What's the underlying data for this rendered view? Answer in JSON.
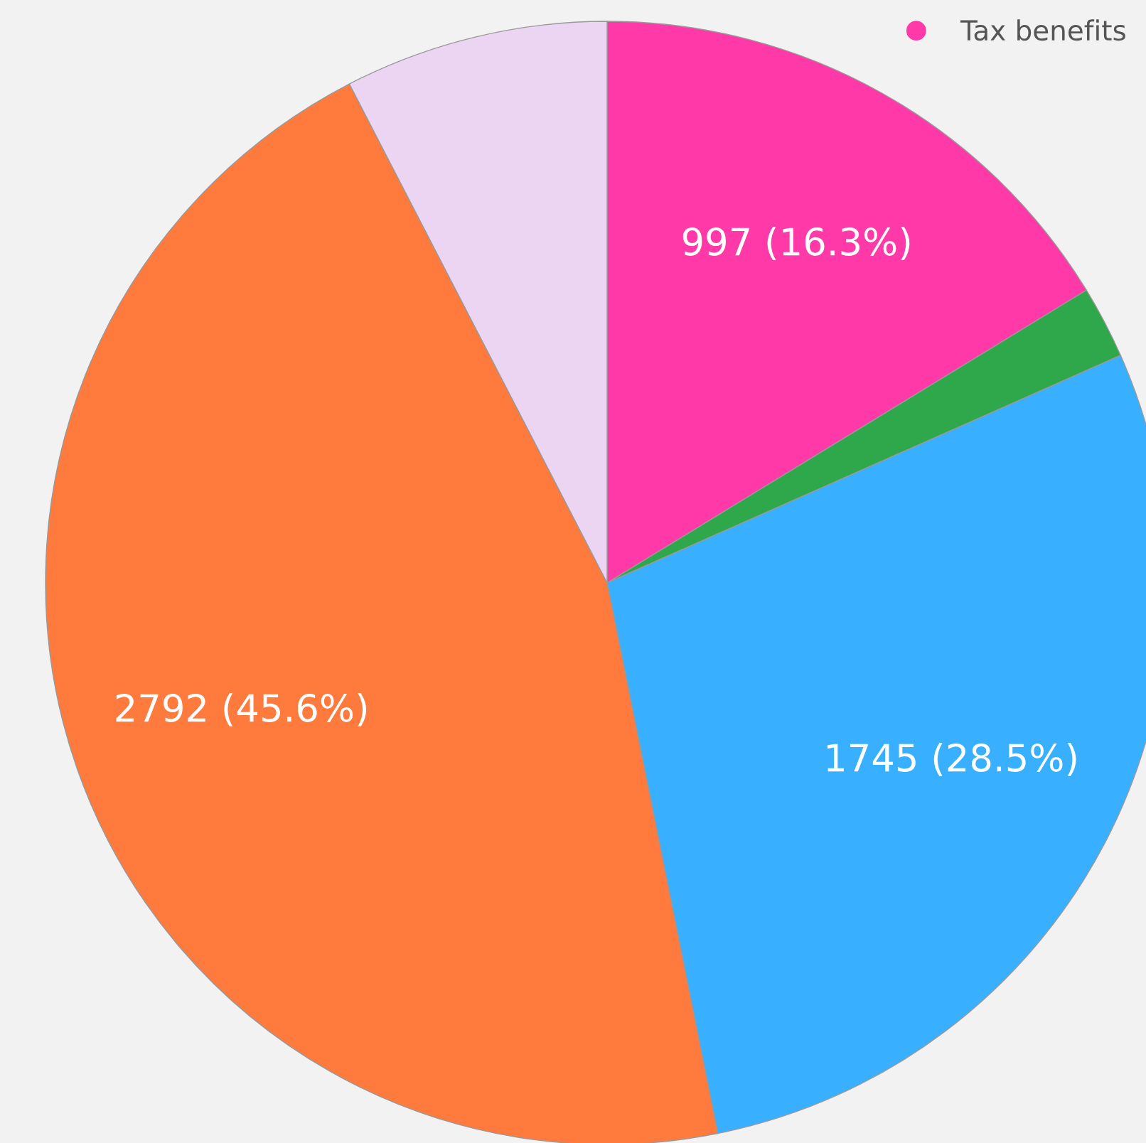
{
  "chart_data": {
    "type": "pie",
    "categories": [
      "Tax benefits",
      null,
      null,
      null,
      null
    ],
    "values": [
      997,
      128,
      1745,
      2792,
      465
    ],
    "colors": [
      "#ff3aa8",
      "#2ea84a",
      "#38b0ff",
      "#ff7a3d",
      "#ebd5f2"
    ],
    "value_labels": [
      "997 (16.3%)",
      null,
      "1745 (28.5%)",
      "2792 (45.6%)",
      null
    ],
    "legend": "top right"
  }
}
